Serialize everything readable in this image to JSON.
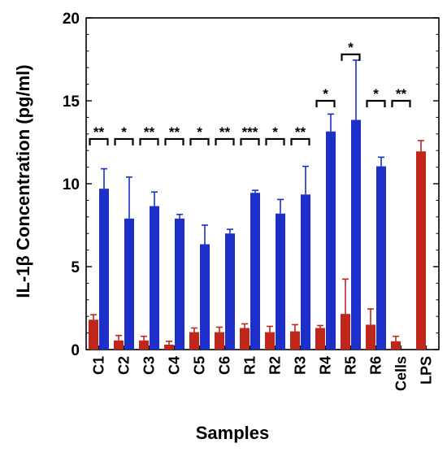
{
  "chart_data": {
    "type": "bar",
    "xlabel": "Samples",
    "ylabel": "IL-1β Concentration (pg/ml)",
    "ylim": [
      0,
      20
    ],
    "yticks": [
      0,
      5,
      10,
      15,
      20
    ],
    "categories": [
      "C1",
      "C2",
      "C3",
      "C4",
      "C5",
      "C6",
      "R1",
      "R2",
      "R3",
      "R4",
      "R5",
      "R6",
      "Cells",
      "LPS"
    ],
    "series": [
      {
        "color": "#c0261a",
        "values": [
          1.8,
          0.55,
          0.55,
          0.3,
          1.05,
          1.05,
          1.3,
          1.05,
          1.1,
          1.3,
          2.15,
          1.5,
          0.5,
          11.95
        ],
        "errors": [
          0.3,
          0.3,
          0.25,
          0.2,
          0.25,
          0.3,
          0.25,
          0.35,
          0.4,
          0.15,
          2.1,
          0.95,
          0.3,
          0.65
        ]
      },
      {
        "color": "#1c2fc8",
        "values": [
          9.7,
          7.9,
          8.65,
          7.9,
          6.35,
          7.0,
          9.45,
          8.2,
          9.35,
          13.15,
          13.85,
          11.05,
          null,
          null
        ],
        "errors": [
          1.2,
          2.5,
          0.85,
          0.25,
          1.15,
          0.25,
          0.15,
          0.85,
          1.7,
          1.05,
          3.6,
          0.55,
          null,
          null
        ]
      }
    ],
    "significance": [
      {
        "category": "C1",
        "label": "**",
        "y": 12.7
      },
      {
        "category": "C2",
        "label": "*",
        "y": 12.7
      },
      {
        "category": "C3",
        "label": "**",
        "y": 12.7
      },
      {
        "category": "C4",
        "label": "**",
        "y": 12.7
      },
      {
        "category": "C5",
        "label": "*",
        "y": 12.7
      },
      {
        "category": "C6",
        "label": "**",
        "y": 12.7
      },
      {
        "category": "R1",
        "label": "***",
        "y": 12.7
      },
      {
        "category": "R2",
        "label": "*",
        "y": 12.7
      },
      {
        "category": "R3",
        "label": "**",
        "y": 12.7
      },
      {
        "category": "R4",
        "label": "*",
        "y": 15.0
      },
      {
        "category": "R5",
        "label": "*",
        "y": 17.8
      },
      {
        "category": "R6",
        "label": "*",
        "y": 15.0
      },
      {
        "category": "Cells",
        "label": "**",
        "y": 15.0
      }
    ],
    "grid": false
  }
}
